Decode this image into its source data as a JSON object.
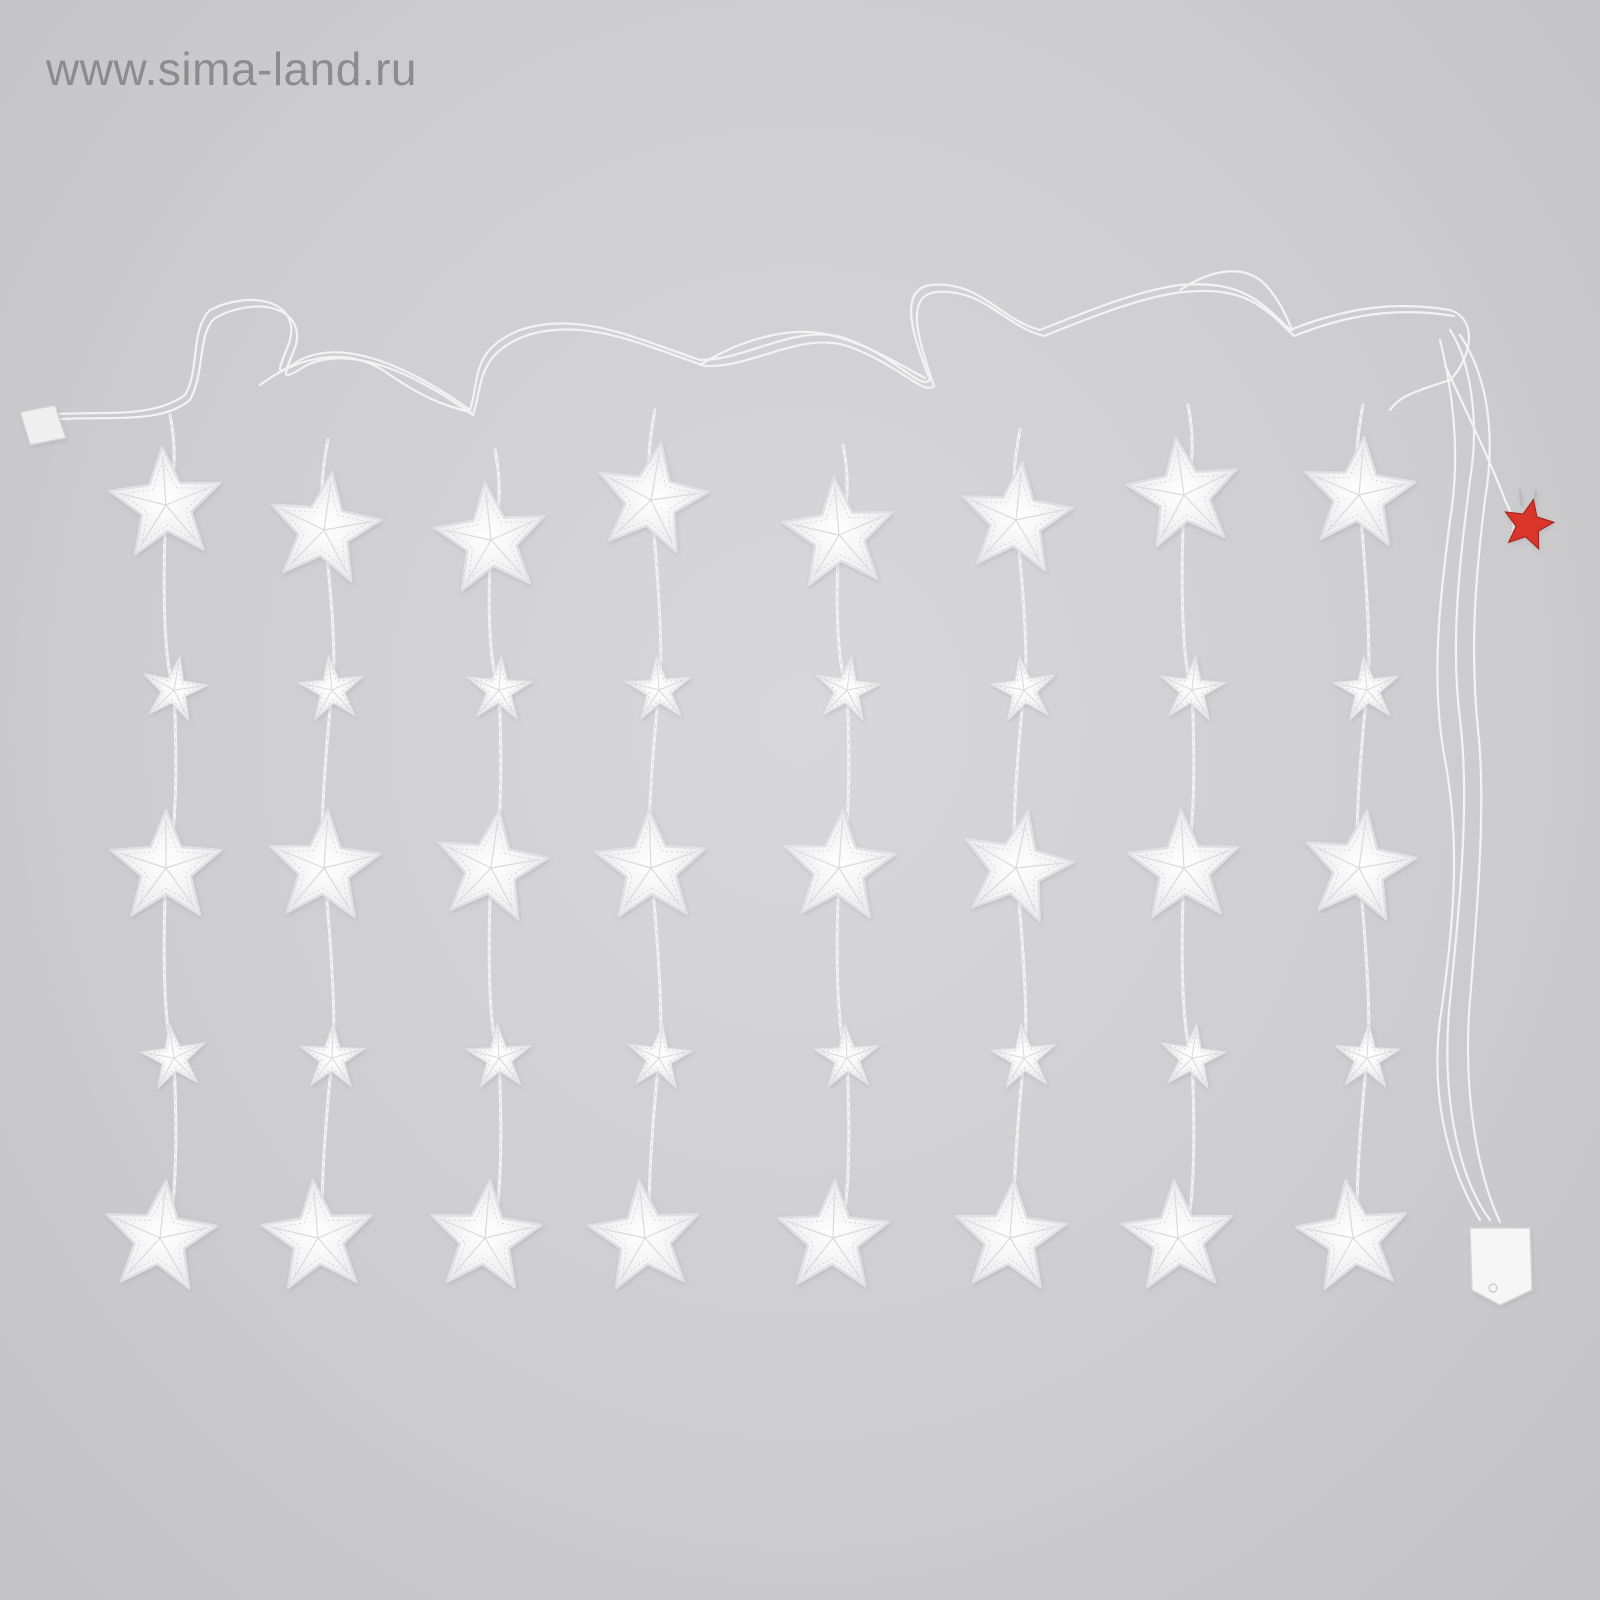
{
  "watermark": {
    "text": "www.sima-land.ru"
  },
  "photo": {
    "subject": "star-curtain-garland",
    "strand_count": 8,
    "colors": {
      "background": "#cfcfd1",
      "star": "#f4f4f5",
      "wire": "#f2f2f2",
      "plug": "#d9362b"
    }
  }
}
